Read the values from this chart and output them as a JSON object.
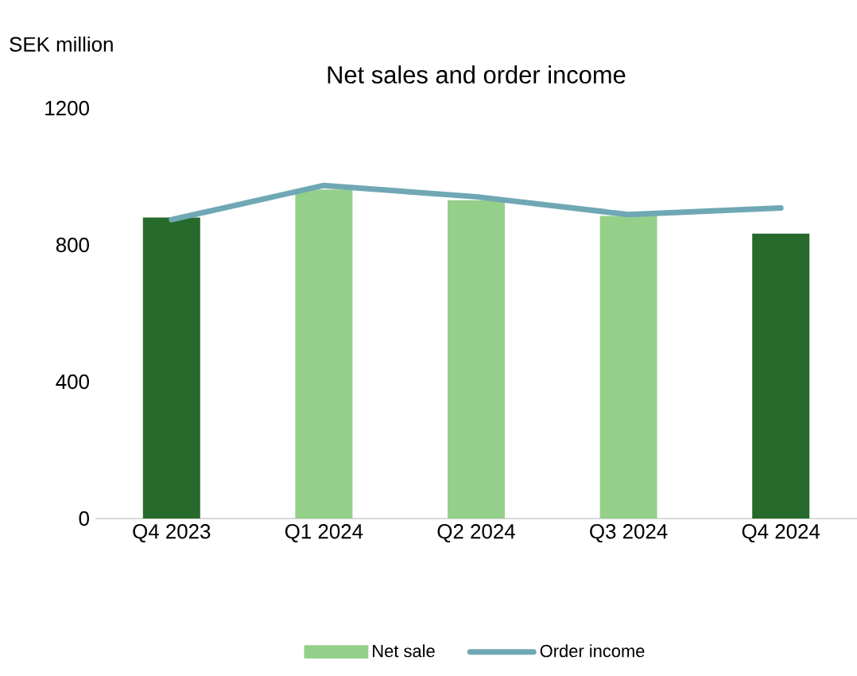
{
  "chart_data": {
    "type": "bar",
    "title": "Net sales and order income",
    "ylabel": "SEK million",
    "categories": [
      "Q4 2023",
      "Q1 2024",
      "Q2 2024",
      "Q3 2024",
      "Q4 2024"
    ],
    "series": [
      {
        "name": "Net sale",
        "color": "#94d08a",
        "colors": [
          "#276b2c",
          "#94d08a",
          "#94d08a",
          "#94d08a",
          "#276b2c"
        ],
        "values": [
          880,
          962,
          931,
          885,
          833
        ]
      },
      {
        "name": "Order income",
        "type": "line",
        "color": "#6fa8b4",
        "values": [
          874,
          974,
          941,
          889,
          908
        ]
      }
    ],
    "ylim": [
      0,
      1200
    ],
    "yticks": [
      0,
      400,
      800,
      1200
    ],
    "legend": "bottom",
    "grid": false
  }
}
